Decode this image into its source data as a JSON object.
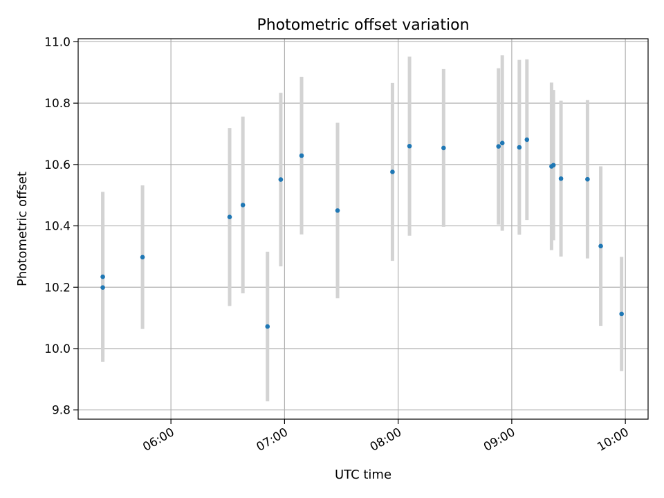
{
  "chart_data": {
    "type": "scatter",
    "title": "Photometric offset variation",
    "xlabel": "UTC time",
    "ylabel": "Photometric offset",
    "x_axis_kind": "time",
    "xlim": [
      "05:11",
      "10:12"
    ],
    "ylim": [
      9.77,
      11.01
    ],
    "x_ticks": [
      "06:00",
      "07:00",
      "08:00",
      "09:00",
      "10:00"
    ],
    "y_ticks": [
      9.8,
      10.0,
      10.2,
      10.4,
      10.6,
      10.8,
      11.0
    ],
    "y_tick_labels": [
      "9.8",
      "10.0",
      "10.2",
      "10.4",
      "10.6",
      "10.8",
      "11.0"
    ],
    "grid": true,
    "marker_color": "#1f77b4",
    "errorbar_color": "#d3d3d3",
    "series": [
      {
        "points": [
          {
            "x": "05:24",
            "y": 10.199,
            "err": 0.225
          },
          {
            "x": "05:24",
            "y": 10.234,
            "err": 0.277
          },
          {
            "x": "05:45",
            "y": 10.298,
            "err": 0.234
          },
          {
            "x": "06:31",
            "y": 10.429,
            "err": 0.29
          },
          {
            "x": "06:38",
            "y": 10.468,
            "err": 0.288
          },
          {
            "x": "06:51",
            "y": 10.072,
            "err": 0.244
          },
          {
            "x": "06:58",
            "y": 10.551,
            "err": 0.283
          },
          {
            "x": "07:09",
            "y": 10.629,
            "err": 0.257
          },
          {
            "x": "07:28",
            "y": 10.45,
            "err": 0.286
          },
          {
            "x": "07:57",
            "y": 10.576,
            "err": 0.29
          },
          {
            "x": "08:06",
            "y": 10.66,
            "err": 0.292
          },
          {
            "x": "08:24",
            "y": 10.654,
            "err": 0.257
          },
          {
            "x": "08:53",
            "y": 10.659,
            "err": 0.255
          },
          {
            "x": "08:55",
            "y": 10.67,
            "err": 0.286
          },
          {
            "x": "09:04",
            "y": 10.656,
            "err": 0.285
          },
          {
            "x": "09:08",
            "y": 10.681,
            "err": 0.262
          },
          {
            "x": "09:21",
            "y": 10.594,
            "err": 0.273
          },
          {
            "x": "09:22",
            "y": 10.598,
            "err": 0.245
          },
          {
            "x": "09:26",
            "y": 10.554,
            "err": 0.254
          },
          {
            "x": "09:40",
            "y": 10.552,
            "err": 0.258
          },
          {
            "x": "09:47",
            "y": 10.334,
            "err": 0.26
          },
          {
            "x": "09:58",
            "y": 10.113,
            "err": 0.186
          }
        ]
      }
    ]
  }
}
